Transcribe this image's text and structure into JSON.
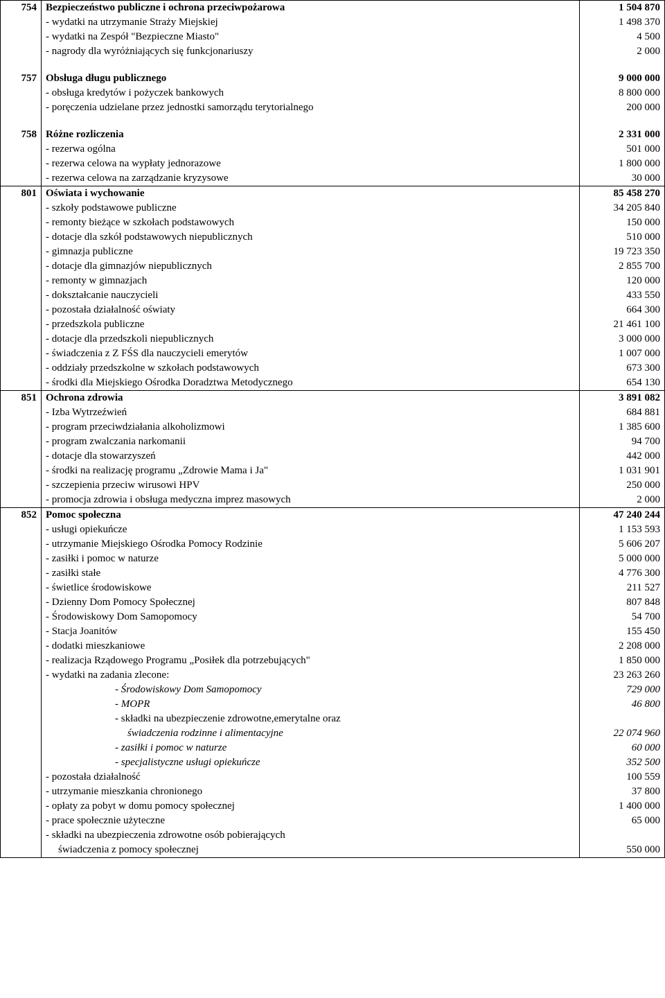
{
  "blocks": [
    {
      "code": "754",
      "title": "Bezpieczeństwo publiczne i ochrona przeciwpożarowa",
      "title_value": "1 504 870",
      "items": [
        {
          "label": "- wydatki na utrzymanie Straży Miejskiej",
          "value": "1 498 370"
        },
        {
          "label": "- wydatki na Zespół \"Bezpieczne Miasto\"",
          "value": "4 500"
        },
        {
          "label": "- nagrody dla wyróżniających się funkcjonariuszy",
          "value": "2 000"
        }
      ]
    },
    {
      "code": "757",
      "title": "Obsługa długu publicznego",
      "title_value": "9 000 000",
      "items": [
        {
          "label": "- obsługa kredytów i pożyczek bankowych",
          "value": "8 800 000"
        },
        {
          "label": "- poręczenia udzielane przez jednostki samorządu terytorialnego",
          "value": "200 000"
        }
      ]
    },
    {
      "code": "758",
      "title": "Różne rozliczenia",
      "title_value": "2 331 000",
      "items": [
        {
          "label": "- rezerwa ogólna",
          "value": "501 000"
        },
        {
          "label": "- rezerwa celowa na wypłaty jednorazowe",
          "value": "1 800 000"
        },
        {
          "label": "- rezerwa celowa na zarządzanie kryzysowe",
          "value": "30 000"
        }
      ]
    },
    {
      "code": "801",
      "title": "Oświata i wychowanie",
      "title_value": "85 458 270",
      "items": [
        {
          "label": "- szkoły podstawowe publiczne",
          "value": "34 205 840"
        },
        {
          "label": "- remonty bieżące w szkołach podstawowych",
          "value": "150 000"
        },
        {
          "label": "- dotacje dla szkół podstawowych niepublicznych",
          "value": "510 000"
        },
        {
          "label": "- gimnazja publiczne",
          "value": "19 723 350"
        },
        {
          "label": "- dotacje dla gimnazjów niepublicznych",
          "value": "2 855 700"
        },
        {
          "label": "- remonty w gimnazjach",
          "value": "120 000"
        },
        {
          "label": "- dokształcanie nauczycieli",
          "value": "433 550"
        },
        {
          "label": "- pozostała działalność oświaty",
          "value": "664 300"
        },
        {
          "label": "-  przedszkola publiczne",
          "value": "21 461 100"
        },
        {
          "label": "- dotacje dla przedszkoli niepublicznych",
          "value": "3 000 000"
        },
        {
          "label": "- świadczenia z Z FŚS dla nauczycieli emerytów",
          "value": "1 007 000"
        },
        {
          "label": "- oddziały przedszkolne w szkołach podstawowych",
          "value": "673 300"
        },
        {
          "label": "- środki dla Miejskiego Ośrodka Doradztwa Metodycznego",
          "value": "654 130"
        }
      ]
    },
    {
      "code": "851",
      "title": "Ochrona zdrowia",
      "title_value": "3 891 082",
      "items": [
        {
          "label": "- Izba Wytrzeźwień",
          "value": "684 881"
        },
        {
          "label": "- program przeciwdziałania alkoholizmowi",
          "value": "1 385 600"
        },
        {
          "label": "- program zwalczania narkomanii",
          "value": "94 700"
        },
        {
          "label": "- dotacje dla stowarzyszeń",
          "value": "442 000"
        },
        {
          "label": "- środki na realizację programu „Zdrowie Mama i Ja\"",
          "value": "1 031 901"
        },
        {
          "label": "- szczepienia przeciw wirusowi HPV",
          "value": "250 000"
        },
        {
          "label": "- promocja zdrowia i obsługa medyczna imprez masowych",
          "value": "2 000"
        }
      ]
    },
    {
      "code": "852",
      "title": "Pomoc społeczna",
      "title_value": "47 240 244",
      "items": [
        {
          "label": "- usługi opiekuńcze",
          "value": "1 153 593"
        },
        {
          "label": "- utrzymanie Miejskiego Ośrodka Pomocy Rodzinie",
          "value": "5 606 207"
        },
        {
          "label": "- zasiłki i pomoc w naturze",
          "value": "5 000 000"
        },
        {
          "label": "- zasiłki stałe",
          "value": "4 776 300"
        },
        {
          "label": "- świetlice środowiskowe",
          "value": "211 527"
        },
        {
          "label": "- Dzienny Dom Pomocy Społecznej",
          "value": "807 848"
        },
        {
          "label": "- Środowiskowy Dom Samopomocy",
          "value": "54 700"
        },
        {
          "label": "- Stacja Joanitów",
          "value": "155 450"
        },
        {
          "label": "- dodatki mieszkaniowe",
          "value": "2 208 000"
        },
        {
          "label": "- realizacja Rządowego Programu „Posiłek dla potrzebujących\"",
          "value": "1 850 000"
        },
        {
          "label": "- wydatki na zadania zlecone:",
          "value": "23 263 260"
        }
      ],
      "sub_items": [
        {
          "label": "- Środowiskowy Dom Samopomocy",
          "value": "729 000",
          "italic": true
        },
        {
          "label": "- MOPR",
          "value": "46 800",
          "italic": true
        },
        {
          "label": "- składki na ubezpieczenie zdrowotne,emerytalne oraz",
          "value": "",
          "italic": false
        },
        {
          "label": "  świadczenia rodzinne i alimentacyjne",
          "value": "22 074 960",
          "italic": true,
          "indent_extra": true
        },
        {
          "label": "- zasiłki i  pomoc w naturze",
          "value": "60 000",
          "italic": true
        },
        {
          "label": "- specjalistyczne usługi opiekuńcze",
          "value": "352 500",
          "italic": true
        }
      ],
      "items_after": [
        {
          "label": "- pozostała działalność",
          "value": "100 559"
        },
        {
          "label": "- utrzymanie mieszkania chronionego",
          "value": "37 800"
        },
        {
          "label": "- opłaty za pobyt w domu pomocy społecznej",
          "value": "1 400 000"
        },
        {
          "label": "- prace społecznie użyteczne",
          "value": "65 000"
        },
        {
          "label": "- składki na ubezpieczenia zdrowotne osób pobierających",
          "value": ""
        },
        {
          "label": "  świadczenia z pomocy społecznej",
          "value": "550 000",
          "indent_extra": true
        }
      ]
    }
  ]
}
